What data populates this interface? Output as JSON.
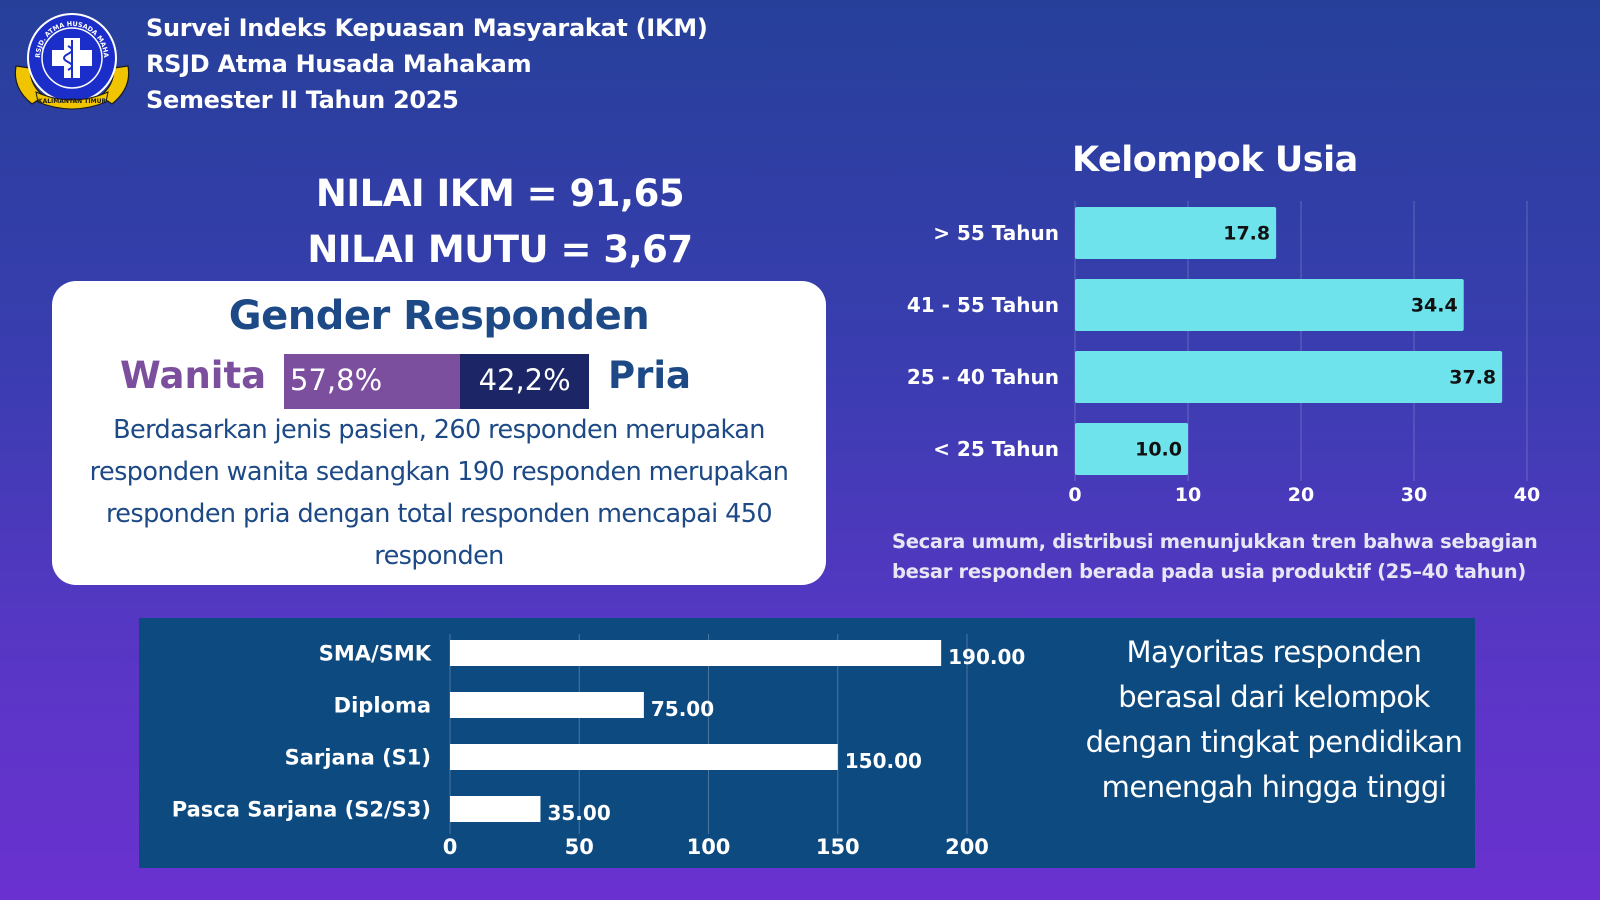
{
  "header": {
    "line1": "Survei Indeks Kepuasan Masyarakat (IKM)",
    "line2": "RSJD Atma Husada Mahakam",
    "line3": "Semester II Tahun 2025"
  },
  "logo": {
    "ring_text": "RSJD. ATMA HUSADA MAHAKAM",
    "banner_text": "KALIMANTAN TIMUR"
  },
  "nilai": {
    "ikm": "NILAI IKM = 91,65",
    "mutu": "NILAI MUTU = 3,67"
  },
  "gender": {
    "title": "Gender Responden",
    "wanita_label": "Wanita",
    "pria_label": "Pria",
    "wanita_pct": "57,8%",
    "pria_pct": "42,2%",
    "wanita_value": 57.8,
    "pria_value": 42.2,
    "description": "Berdasarkan jenis pasien, 260 responden merupakan responden wanita sedangkan 190 responden merupakan responden pria dengan total responden mencapai 450 responden"
  },
  "usia": {
    "title": "Kelompok Usia",
    "note": "Secara umum, distribusi menunjukkan tren bahwa sebagian besar responden berada pada usia produktif (25–40 tahun)"
  },
  "pendidikan": {
    "note": "Mayoritas responden berasal dari kelompok dengan tingkat pendidikan menengah hingga tinggi"
  },
  "colors": {
    "usia_bar": "#6ee3ec",
    "edu_bar": "#ffffff",
    "edu_panel": "#0d4a80",
    "wanita": "#7b4f9e",
    "pria": "#1c2566",
    "title_blue": "#1d4a86"
  },
  "chart_data": [
    {
      "type": "bar",
      "orientation": "horizontal",
      "title": "Kelompok Usia",
      "categories": [
        "> 55 Tahun",
        "41 - 55 Tahun",
        "25 - 40 Tahun",
        "< 25 Tahun"
      ],
      "values": [
        17.8,
        34.4,
        37.8,
        10.0
      ],
      "value_labels": [
        "17.8",
        "34.4",
        "37.8",
        "10.0"
      ],
      "xlim": [
        0,
        40
      ],
      "xticks": [
        0,
        10,
        20,
        30,
        40
      ],
      "grid": true
    },
    {
      "type": "bar",
      "orientation": "horizontal",
      "categories": [
        "SMA/SMK",
        "Diploma",
        "Sarjana (S1)",
        "Pasca Sarjana (S2/S3)"
      ],
      "values": [
        190,
        75,
        150,
        35
      ],
      "value_labels": [
        "190.00",
        "75.00",
        "150.00",
        "35.00"
      ],
      "xlim": [
        0,
        200
      ],
      "xticks": [
        0,
        50,
        100,
        150,
        200
      ],
      "grid": true
    }
  ]
}
